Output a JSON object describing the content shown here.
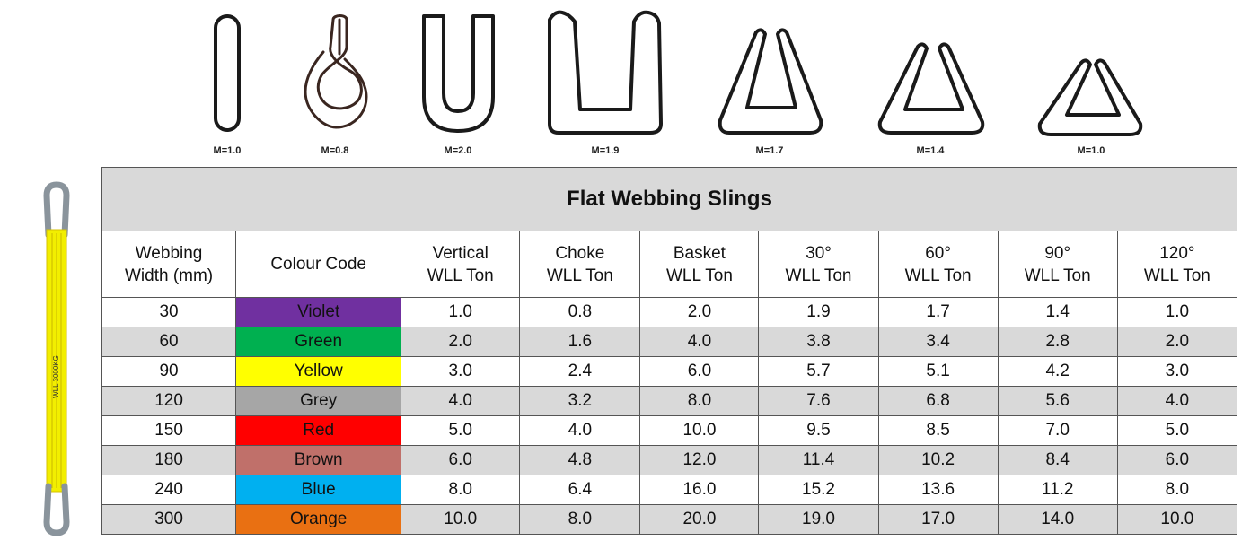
{
  "hitches": [
    {
      "name": "vertical",
      "label": "M=1.0"
    },
    {
      "name": "choke",
      "label": "M=0.8"
    },
    {
      "name": "basket",
      "label": "M=2.0"
    },
    {
      "name": "basket-wide",
      "label": "M=1.9"
    },
    {
      "name": "angle-30",
      "label": "M=1.7"
    },
    {
      "name": "angle-60",
      "label": "M=1.4"
    },
    {
      "name": "angle-90",
      "label": "M=1.0"
    }
  ],
  "sling_image": {
    "print_text": "WLL 3000KG",
    "color": "#f2ee00",
    "eye_color": "#8a949c"
  },
  "table": {
    "title": "Flat Webbing Slings",
    "headers": [
      [
        "Webbing",
        "Width (mm)"
      ],
      [
        "Colour Code"
      ],
      [
        "Vertical",
        "WLL Ton"
      ],
      [
        "Choke",
        "WLL Ton"
      ],
      [
        "Basket",
        "WLL Ton"
      ],
      [
        "30°",
        "WLL Ton"
      ],
      [
        "60°",
        "WLL Ton"
      ],
      [
        "90°",
        "WLL Ton"
      ],
      [
        "120°",
        "WLL Ton"
      ]
    ],
    "rows": [
      {
        "width": "30",
        "colour": "Violet",
        "colour_hex": "#7030a0",
        "vertical": "1.0",
        "choke": "0.8",
        "basket": "2.0",
        "a30": "1.9",
        "a60": "1.7",
        "a90": "1.4",
        "a120": "1.0"
      },
      {
        "width": "60",
        "colour": "Green",
        "colour_hex": "#00b050",
        "vertical": "2.0",
        "choke": "1.6",
        "basket": "4.0",
        "a30": "3.8",
        "a60": "3.4",
        "a90": "2.8",
        "a120": "2.0"
      },
      {
        "width": "90",
        "colour": "Yellow",
        "colour_hex": "#ffff00",
        "vertical": "3.0",
        "choke": "2.4",
        "basket": "6.0",
        "a30": "5.7",
        "a60": "5.1",
        "a90": "4.2",
        "a120": "3.0"
      },
      {
        "width": "120",
        "colour": "Grey",
        "colour_hex": "#a6a6a6",
        "vertical": "4.0",
        "choke": "3.2",
        "basket": "8.0",
        "a30": "7.6",
        "a60": "6.8",
        "a90": "5.6",
        "a120": "4.0"
      },
      {
        "width": "150",
        "colour": "Red",
        "colour_hex": "#ff0000",
        "vertical": "5.0",
        "choke": "4.0",
        "basket": "10.0",
        "a30": "9.5",
        "a60": "8.5",
        "a90": "7.0",
        "a120": "5.0"
      },
      {
        "width": "180",
        "colour": "Brown",
        "colour_hex": "#c0706a",
        "vertical": "6.0",
        "choke": "4.8",
        "basket": "12.0",
        "a30": "11.4",
        "a60": "10.2",
        "a90": "8.4",
        "a120": "6.0"
      },
      {
        "width": "240",
        "colour": "Blue",
        "colour_hex": "#00b0f0",
        "vertical": "8.0",
        "choke": "6.4",
        "basket": "16.0",
        "a30": "15.2",
        "a60": "13.6",
        "a90": "11.2",
        "a120": "8.0"
      },
      {
        "width": "300",
        "colour": "Orange",
        "colour_hex": "#e97012",
        "vertical": "10.0",
        "choke": "8.0",
        "basket": "20.0",
        "a30": "19.0",
        "a60": "17.0",
        "a90": "14.0",
        "a120": "10.0"
      }
    ]
  }
}
